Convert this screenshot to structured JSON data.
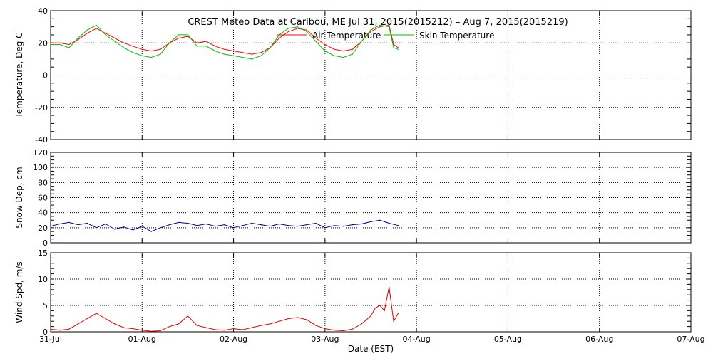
{
  "title": "CREST Meteo Data at Caribou, ME   Jul 31, 2015(2015212) – Aug  7, 2015(2015219)",
  "colors": {
    "air": "#ff0000",
    "skin": "#00c000",
    "snow": "#000090",
    "wind": "#e00000",
    "axis": "#000000",
    "grid": "#000000",
    "background": "#ffffff"
  },
  "chart_data": [
    {
      "type": "line",
      "ylabel": "Temperature, Deg C",
      "ylim": [
        -40,
        40
      ],
      "yticks": [
        -40,
        -20,
        0,
        20,
        40
      ],
      "grid": true,
      "legend_position": "top-center",
      "x_unit": "days since Jul 31 00:00 EST",
      "series": [
        {
          "name": "Air Temperature",
          "x": [
            0,
            0.1,
            0.2,
            0.3,
            0.4,
            0.5,
            0.6,
            0.7,
            0.8,
            0.9,
            1.0,
            1.1,
            1.2,
            1.3,
            1.4,
            1.5,
            1.6,
            1.7,
            1.8,
            1.9,
            2.0,
            2.1,
            2.2,
            2.3,
            2.4,
            2.5,
            2.6,
            2.7,
            2.8,
            2.9,
            3.0,
            3.1,
            3.2,
            3.3,
            3.4,
            3.5,
            3.6,
            3.7,
            3.75,
            3.8
          ],
          "y": [
            20,
            20,
            19,
            22,
            26,
            29,
            26,
            23,
            20,
            18,
            16,
            15,
            16,
            20,
            23,
            24,
            20,
            21,
            18,
            16,
            15,
            14,
            13,
            14,
            17,
            23,
            27,
            29,
            28,
            23,
            19,
            16,
            15,
            16,
            21,
            27,
            30,
            31,
            19,
            17
          ]
        },
        {
          "name": "Skin Temperature",
          "x": [
            0,
            0.1,
            0.2,
            0.3,
            0.4,
            0.5,
            0.6,
            0.7,
            0.8,
            0.9,
            1.0,
            1.1,
            1.2,
            1.3,
            1.4,
            1.5,
            1.6,
            1.7,
            1.8,
            1.9,
            2.0,
            2.1,
            2.2,
            2.3,
            2.4,
            2.5,
            2.6,
            2.7,
            2.8,
            2.9,
            3.0,
            3.1,
            3.2,
            3.3,
            3.4,
            3.5,
            3.6,
            3.7,
            3.75,
            3.8
          ],
          "y": [
            19,
            19,
            17,
            23,
            28,
            31,
            25,
            21,
            17,
            14,
            12,
            11,
            13,
            20,
            25,
            25,
            18,
            18,
            15,
            13,
            12,
            11,
            10,
            12,
            17,
            25,
            29,
            30,
            27,
            21,
            15,
            12,
            11,
            13,
            21,
            28,
            31,
            30,
            17,
            16
          ]
        }
      ]
    },
    {
      "type": "line",
      "ylabel": "Snow Dep, cm",
      "ylim": [
        0,
        120
      ],
      "yticks": [
        0,
        20,
        40,
        60,
        80,
        100,
        120
      ],
      "grid": true,
      "x_unit": "days since Jul 31 00:00 EST",
      "series": [
        {
          "name": "",
          "x": [
            0,
            0.1,
            0.2,
            0.3,
            0.4,
            0.5,
            0.6,
            0.7,
            0.8,
            0.9,
            1.0,
            1.1,
            1.2,
            1.3,
            1.4,
            1.5,
            1.6,
            1.7,
            1.8,
            1.9,
            2.0,
            2.1,
            2.2,
            2.3,
            2.4,
            2.5,
            2.6,
            2.7,
            2.8,
            2.9,
            3.0,
            3.1,
            3.2,
            3.3,
            3.4,
            3.5,
            3.6,
            3.7,
            3.8
          ],
          "y": [
            22,
            25,
            27,
            24,
            26,
            20,
            25,
            18,
            21,
            17,
            22,
            15,
            20,
            24,
            27,
            26,
            23,
            25,
            22,
            24,
            20,
            23,
            26,
            24,
            22,
            25,
            23,
            22,
            24,
            26,
            20,
            23,
            22,
            24,
            25,
            28,
            30,
            26,
            23
          ]
        }
      ]
    },
    {
      "type": "line",
      "ylabel": "Wind Spd, m/s",
      "ylim": [
        0,
        15
      ],
      "yticks": [
        0,
        5,
        10,
        15
      ],
      "grid": true,
      "xlabel": "Date (EST)",
      "xlim": [
        0,
        7
      ],
      "xticks": [
        "31-Jul",
        "01-Aug",
        "02-Aug",
        "03-Aug",
        "04-Aug",
        "05-Aug",
        "06-Aug",
        "07-Aug"
      ],
      "x_unit": "days since Jul 31 00:00 EST",
      "series": [
        {
          "name": "",
          "x": [
            0,
            0.1,
            0.2,
            0.3,
            0.4,
            0.5,
            0.6,
            0.7,
            0.8,
            0.9,
            1.0,
            1.1,
            1.2,
            1.3,
            1.4,
            1.5,
            1.6,
            1.7,
            1.8,
            1.9,
            2.0,
            2.1,
            2.2,
            2.3,
            2.4,
            2.5,
            2.6,
            2.7,
            2.8,
            2.9,
            3.0,
            3.1,
            3.2,
            3.3,
            3.4,
            3.5,
            3.55,
            3.6,
            3.65,
            3.7,
            3.75,
            3.8
          ],
          "y": [
            0.5,
            0.3,
            0.5,
            1.5,
            2.5,
            3.5,
            2.5,
            1.5,
            0.8,
            0.6,
            0.3,
            0.1,
            0.2,
            1.0,
            1.5,
            3.0,
            1.2,
            0.8,
            0.4,
            0.3,
            0.6,
            0.4,
            0.8,
            1.2,
            1.5,
            2.0,
            2.5,
            2.7,
            2.3,
            1.2,
            0.6,
            0.3,
            0.2,
            0.5,
            1.5,
            3.0,
            4.5,
            5.0,
            4.0,
            8.5,
            2.0,
            3.5
          ]
        }
      ]
    }
  ]
}
